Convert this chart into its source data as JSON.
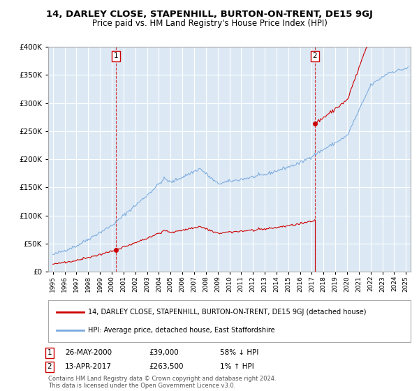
{
  "title": "14, DARLEY CLOSE, STAPENHILL, BURTON-ON-TRENT, DE15 9GJ",
  "subtitle": "Price paid vs. HM Land Registry's House Price Index (HPI)",
  "ylim": [
    0,
    400000
  ],
  "yticks": [
    0,
    50000,
    100000,
    150000,
    200000,
    250000,
    300000,
    350000,
    400000
  ],
  "xlim_start": 1994.6,
  "xlim_end": 2025.4,
  "sale1_x": 2000.38,
  "sale1_y": 39000,
  "sale2_x": 2017.27,
  "sale2_y": 263500,
  "line1_color": "#cc0000",
  "line2_color": "#7aaadd",
  "background_color": "#dce9f5",
  "grid_color": "#ffffff",
  "legend1": "14, DARLEY CLOSE, STAPENHILL, BURTON-ON-TRENT, DE15 9GJ (detached house)",
  "legend2": "HPI: Average price, detached house, East Staffordshire",
  "table_row1_num": "1",
  "table_row1_date": "26-MAY-2000",
  "table_row1_price": "£39,000",
  "table_row1_hpi": "58% ↓ HPI",
  "table_row2_num": "2",
  "table_row2_date": "13-APR-2017",
  "table_row2_price": "£263,500",
  "table_row2_hpi": "1% ↑ HPI",
  "footnote": "Contains HM Land Registry data © Crown copyright and database right 2024.\nThis data is licensed under the Open Government Licence v3.0."
}
